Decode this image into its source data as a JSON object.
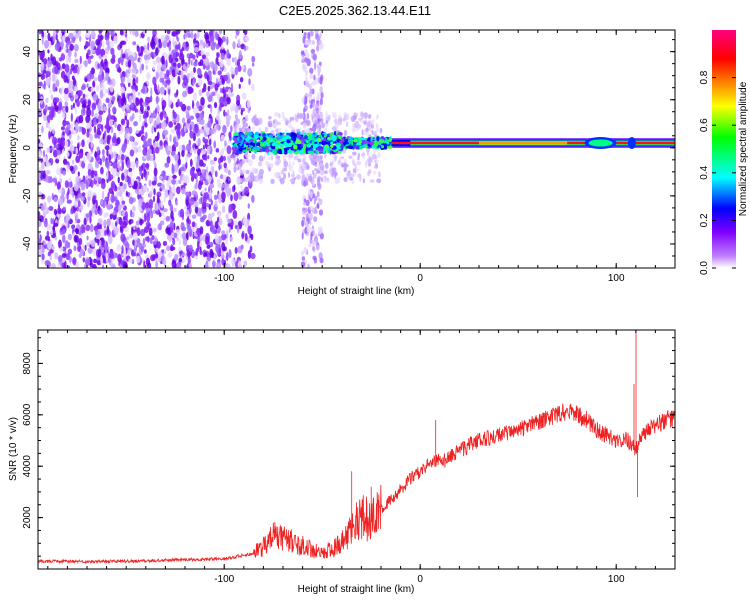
{
  "title": "C2E5.2025.362.13.44.E11",
  "chart_data": [
    {
      "type": "heatmap",
      "name": "spectrogram",
      "xlabel": "Height of straight line (km)",
      "ylabel": "Frequency (Hz)",
      "xlim": [
        -195,
        130
      ],
      "ylim": [
        -50,
        49
      ],
      "xticks": [
        -100,
        0,
        100
      ],
      "yticks": [
        -40,
        -20,
        0,
        20,
        40
      ],
      "colorbar": {
        "label": "Normalized spectral amplitude",
        "range": [
          0,
          1
        ],
        "ticks": [
          0.0,
          0.2,
          0.4,
          0.6,
          0.8
        ],
        "colormap": [
          "#ffffff",
          "#c080ff",
          "#8000ff",
          "#0000ff",
          "#00ffff",
          "#00ff00",
          "#ffff00",
          "#ff8000",
          "#ff0000",
          "#ff0080"
        ]
      },
      "features": {
        "broadband_noise_region_km": [
          -195,
          -85
        ],
        "noise_strip_km": [
          -60,
          -50
        ],
        "signal_frequency_hz": 2,
        "signal_start_km": -95,
        "strong_signal_start_km": -25
      }
    },
    {
      "type": "line",
      "name": "snr",
      "xlabel": "Height of straight line (km)",
      "ylabel": "SNR (10 * v/v)",
      "xlim": [
        -195,
        130
      ],
      "ylim": [
        0,
        9300
      ],
      "xticks": [
        -100,
        0,
        100
      ],
      "yticks": [
        2000,
        4000,
        6000,
        8000
      ],
      "color": "#ee2222",
      "series": [
        {
          "name": "SNR",
          "x": [
            -195,
            -150,
            -100,
            -85,
            -80,
            -75,
            -70,
            -60,
            -50,
            -40,
            -35,
            -30,
            -25,
            -20,
            -15,
            -10,
            -5,
            0,
            5,
            9,
            12,
            20,
            30,
            40,
            50,
            60,
            70,
            76,
            80,
            85,
            90,
            95,
            100,
            105,
            108,
            110,
            112,
            115,
            120,
            125,
            130
          ],
          "y": [
            300,
            300,
            400,
            600,
            900,
            1300,
            1200,
            900,
            600,
            1000,
            1600,
            2000,
            1900,
            2300,
            2700,
            3100,
            3500,
            3800,
            4100,
            4300,
            4200,
            4600,
            5000,
            5200,
            5400,
            5700,
            6000,
            6200,
            6000,
            5800,
            5400,
            5200,
            5000,
            5100,
            4800,
            4500,
            5200,
            5300,
            5600,
            5800,
            5900
          ],
          "spikes": [
            {
              "x": -35,
              "y": 3800
            },
            {
              "x": -25,
              "y": 3200
            },
            {
              "x": 8,
              "y": 5800
            },
            {
              "x": 110,
              "y": 9300
            },
            {
              "x": 109,
              "y": 7200
            },
            {
              "x": 111,
              "y": 2800
            }
          ]
        }
      ]
    }
  ]
}
